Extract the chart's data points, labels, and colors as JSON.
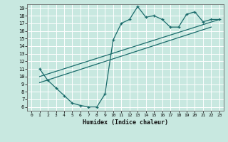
{
  "title": "",
  "xlabel": "Humidex (Indice chaleur)",
  "bg_color": "#c8e8e0",
  "line_color": "#1a6b6b",
  "grid_color": "#ffffff",
  "xlim": [
    -0.5,
    23.5
  ],
  "ylim": [
    5.5,
    19.5
  ],
  "xticks": [
    0,
    1,
    2,
    3,
    4,
    5,
    6,
    7,
    8,
    9,
    10,
    11,
    12,
    13,
    14,
    15,
    16,
    17,
    18,
    19,
    20,
    21,
    22,
    23
  ],
  "yticks": [
    6,
    7,
    8,
    9,
    10,
    11,
    12,
    13,
    14,
    15,
    16,
    17,
    18,
    19
  ],
  "curve1_x": [
    1,
    2,
    3,
    4,
    5,
    6,
    7,
    8,
    9,
    10,
    11,
    12,
    13,
    14,
    15,
    16,
    17,
    18,
    19,
    20,
    21,
    22,
    23
  ],
  "curve1_y": [
    11.0,
    9.5,
    8.5,
    7.5,
    6.5,
    6.2,
    6.0,
    6.0,
    7.7,
    14.8,
    17.0,
    17.5,
    19.2,
    17.8,
    18.0,
    17.5,
    16.5,
    16.5,
    18.2,
    18.5,
    17.2,
    17.5,
    17.5
  ],
  "line1_x": [
    1,
    22
  ],
  "line1_y": [
    9.2,
    16.5
  ],
  "line2_x": [
    1,
    23
  ],
  "line2_y": [
    10.0,
    17.5
  ]
}
